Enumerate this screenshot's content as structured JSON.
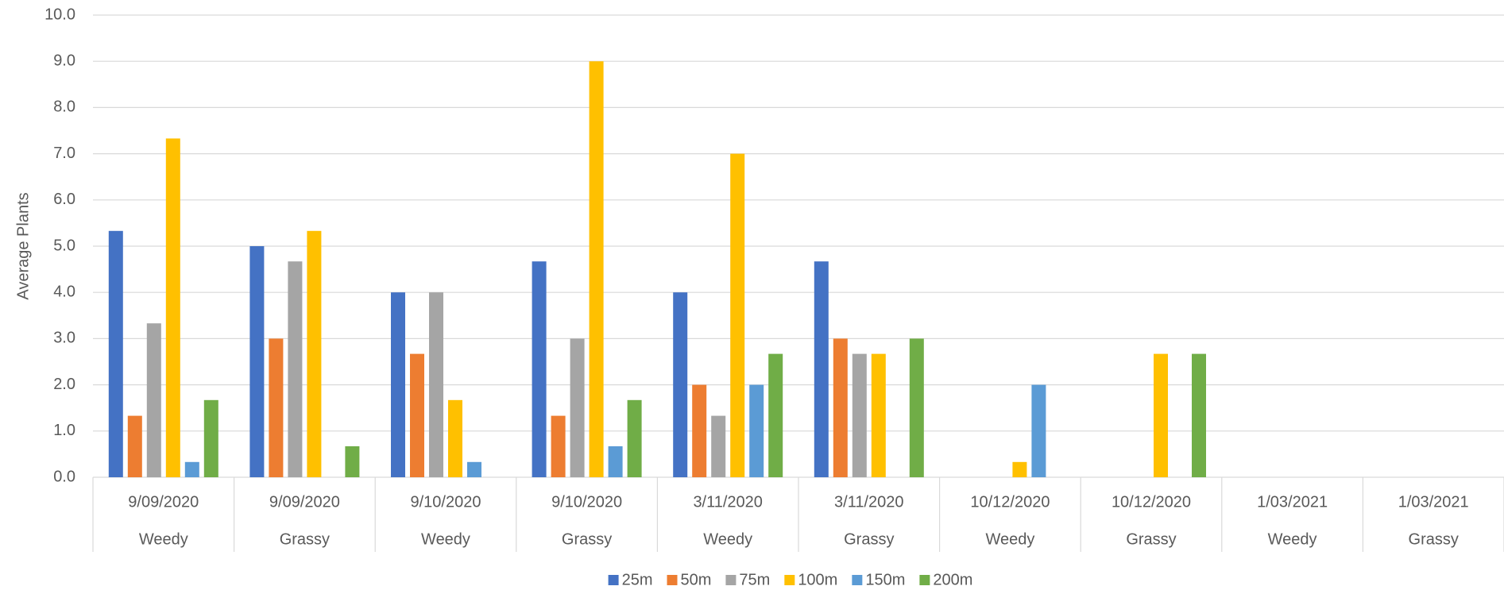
{
  "chart_data": {
    "type": "bar",
    "y_label": "Average Plants",
    "categories": [
      "9/09/2020",
      "9/09/2020",
      "9/10/2020",
      "9/10/2020",
      "3/11/2020",
      "3/11/2020",
      "10/12/2020",
      "10/12/2020",
      "1/03/2021",
      "1/03/2021"
    ],
    "subcategories": [
      "Weedy",
      "Grassy",
      "Weedy",
      "Grassy",
      "Weedy",
      "Grassy",
      "Weedy",
      "Grassy",
      "Weedy",
      "Grassy"
    ],
    "series": [
      {
        "name": "25m",
        "color": "#4472c4",
        "values": [
          5.33,
          5.0,
          4.0,
          4.67,
          4.0,
          4.67,
          0,
          0,
          0,
          0
        ]
      },
      {
        "name": "50m",
        "color": "#ed7d31",
        "values": [
          1.33,
          3.0,
          2.67,
          1.33,
          2.0,
          3.0,
          0,
          0,
          0,
          0
        ]
      },
      {
        "name": "75m",
        "color": "#a5a5a5",
        "values": [
          3.33,
          4.67,
          4.0,
          3.0,
          1.33,
          2.67,
          0,
          0,
          0,
          0
        ]
      },
      {
        "name": "100m",
        "color": "#ffc000",
        "values": [
          7.33,
          5.33,
          1.67,
          9.0,
          7.0,
          2.67,
          0.33,
          2.67,
          0,
          0
        ]
      },
      {
        "name": "150m",
        "color": "#5b9bd5",
        "values": [
          0.33,
          0,
          0.33,
          0.67,
          2.0,
          0,
          2.0,
          0,
          0,
          0
        ]
      },
      {
        "name": "200m",
        "color": "#70ad47",
        "values": [
          1.67,
          0.67,
          0,
          1.67,
          2.67,
          3.0,
          0,
          2.67,
          0,
          0
        ]
      }
    ],
    "ylim": [
      0,
      10
    ],
    "yticks": [
      {
        "value": 0,
        "label": "0.0"
      },
      {
        "value": 1,
        "label": "1.0"
      },
      {
        "value": 2,
        "label": "2.0"
      },
      {
        "value": 3,
        "label": "3.0"
      },
      {
        "value": 4,
        "label": "4.0"
      },
      {
        "value": 5,
        "label": "5.0"
      },
      {
        "value": 6,
        "label": "6.0"
      },
      {
        "value": 7,
        "label": "7.0"
      },
      {
        "value": 8,
        "label": "8.0"
      },
      {
        "value": 9,
        "label": "9.0"
      },
      {
        "value": 10,
        "label": "10.0"
      }
    ],
    "grid": true,
    "legend": "bottom"
  }
}
